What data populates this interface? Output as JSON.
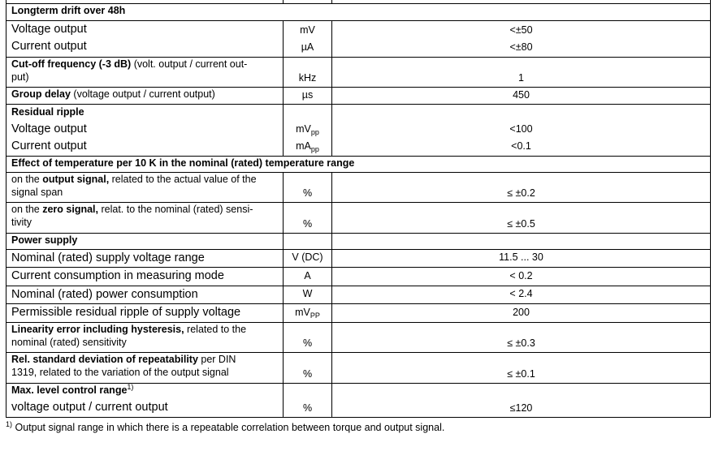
{
  "rows": [
    {
      "span": false,
      "left": [],
      "unit": [],
      "value": []
    },
    {
      "span": true,
      "left": [
        [
          {
            "t": "Longterm drift over 48h",
            "b": true
          }
        ]
      ]
    },
    {
      "big": true,
      "left": [
        [
          {
            "t": "Voltage output"
          }
        ],
        [
          {
            "t": "Current output"
          }
        ]
      ],
      "unit": [
        [
          {
            "t": "mV"
          }
        ],
        [
          {
            "t": "µA"
          }
        ]
      ],
      "value": [
        [
          {
            "t": "<±50"
          }
        ],
        [
          {
            "t": "<±80"
          }
        ]
      ]
    },
    {
      "left": [
        [
          {
            "t": "Cut-off frequency (-3 dB)",
            "b": true
          },
          {
            "t": " (volt. output / current out-"
          }
        ],
        [
          {
            "t": "put)"
          }
        ]
      ],
      "unit": [
        [
          {
            "t": "kHz"
          }
        ]
      ],
      "value": [
        [
          {
            "t": "1"
          }
        ]
      ]
    },
    {
      "left": [
        [
          {
            "t": "Group delay",
            "b": true
          },
          {
            "t": " (voltage output / current output)"
          }
        ]
      ],
      "unit": [
        [
          {
            "t": "µs"
          }
        ]
      ],
      "value": [
        [
          {
            "t": "450"
          }
        ]
      ]
    },
    {
      "big": true,
      "left": [
        [
          {
            "t": "Residual ripple",
            "b": true,
            "small": true
          }
        ],
        [
          {
            "t": "Voltage output"
          }
        ],
        [
          {
            "t": "Current output"
          }
        ]
      ],
      "unit": [
        [
          {
            "t": "mV",
            "sub": "pp"
          }
        ],
        [
          {
            "t": "mA",
            "sub": "pp"
          }
        ]
      ],
      "value": [
        [
          {
            "t": "<100"
          }
        ],
        [
          {
            "t": "<0.1"
          }
        ]
      ]
    },
    {
      "span": true,
      "left": [
        [
          {
            "t": "Effect of temperature per 10 K in the nominal (rated) temperature range",
            "b": true
          }
        ]
      ]
    },
    {
      "left": [
        [
          {
            "t": "on the "
          },
          {
            "t": "output signal,",
            "b": true
          },
          {
            "t": " related to the actual value of the"
          }
        ],
        [
          {
            "t": "signal span"
          }
        ]
      ],
      "unit": [
        [
          {
            "t": "%"
          }
        ]
      ],
      "value": [
        [
          {
            "t": "≤ ±0.2"
          }
        ]
      ]
    },
    {
      "left": [
        [
          {
            "t": "on the "
          },
          {
            "t": "zero signal,",
            "b": true
          },
          {
            "t": " relat. to the nominal (rated) sensi-"
          }
        ],
        [
          {
            "t": "tivity"
          }
        ]
      ],
      "unit": [
        [
          {
            "t": "%"
          }
        ]
      ],
      "value": [
        [
          {
            "t": "≤ ±0.5"
          }
        ]
      ]
    },
    {
      "left": [
        [
          {
            "t": "Power supply",
            "b": true
          }
        ]
      ],
      "unit": [],
      "value": []
    },
    {
      "big": true,
      "left": [
        [
          {
            "t": "Nominal (rated) supply voltage range"
          }
        ]
      ],
      "unit": [
        [
          {
            "t": "V (DC)"
          }
        ]
      ],
      "value": [
        [
          {
            "t": "11.5 ... 30"
          }
        ]
      ]
    },
    {
      "big": true,
      "left": [
        [
          {
            "t": "Current consumption in measuring mode"
          }
        ]
      ],
      "unit": [
        [
          {
            "t": "A"
          }
        ]
      ],
      "value": [
        [
          {
            "t": "< 0.2"
          }
        ]
      ]
    },
    {
      "big": true,
      "left": [
        [
          {
            "t": "Nominal (rated) power consumption"
          }
        ]
      ],
      "unit": [
        [
          {
            "t": "W"
          }
        ]
      ],
      "value": [
        [
          {
            "t": "< 2.4"
          }
        ]
      ]
    },
    {
      "big": true,
      "left": [
        [
          {
            "t": "Permissible residual ripple of supply voltage"
          }
        ]
      ],
      "unit": [
        [
          {
            "t": "mV",
            "sub": "PP"
          }
        ]
      ],
      "value": [
        [
          {
            "t": "200"
          }
        ]
      ]
    },
    {
      "left": [
        [
          {
            "t": "Linearity error including hysteresis,",
            "b": true
          },
          {
            "t": " related to the"
          }
        ],
        [
          {
            "t": "nominal (rated) sensitivity"
          }
        ]
      ],
      "unit": [
        [
          {
            "t": "%"
          }
        ]
      ],
      "value": [
        [
          {
            "t": "≤ ±0.3"
          }
        ]
      ]
    },
    {
      "left": [
        [
          {
            "t": "Rel. standard deviation of repeatability",
            "b": true
          },
          {
            "t": " per DIN"
          }
        ],
        [
          {
            "t": "1319, related to the variation of the output signal"
          }
        ]
      ],
      "unit": [
        [
          {
            "t": "%"
          }
        ]
      ],
      "value": [
        [
          {
            "t": "≤ ±0.1"
          }
        ]
      ]
    },
    {
      "left": [
        [
          {
            "t": "Max. level control range",
            "b": true,
            "sup": "1)"
          }
        ],
        [
          {
            "t": "voltage output / current output",
            "bigline": true
          }
        ]
      ],
      "unit": [
        [
          {
            "t": "%"
          }
        ]
      ],
      "value": [
        [
          {
            "t": "≤120"
          }
        ]
      ]
    }
  ],
  "footnote": {
    "marker": "1)",
    "text": "Output signal range in which there is a repeatable correlation between torque and output signal."
  }
}
